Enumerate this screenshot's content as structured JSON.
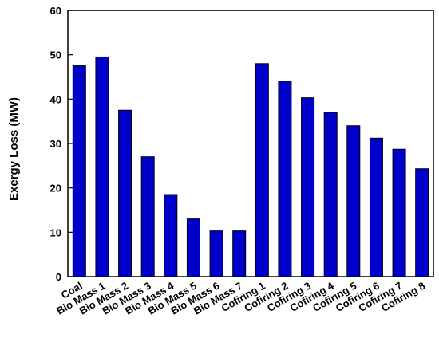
{
  "chart_data": {
    "type": "bar",
    "title": "",
    "xlabel": "",
    "ylabel": "Exergy Loss (MW)",
    "ylim": [
      0,
      60
    ],
    "yticks": [
      0,
      10,
      20,
      30,
      40,
      50,
      60
    ],
    "grid": false,
    "bar_color": "#0000cc",
    "categories": [
      "Coal",
      "Bio Mass 1",
      "Bio Mass 2",
      "Bio Mass 3",
      "Bio Mass 4",
      "Bio Mass 5",
      "Bio Mass 6",
      "Bio Mass 7",
      "Cofiring 1",
      "Cofiring 2",
      "Cofiring 3",
      "Cofiring 4",
      "Cofiring 5",
      "Cofiring 6",
      "Cofiring 7",
      "Cofiring 8"
    ],
    "values": [
      47.5,
      49.5,
      37.5,
      27.0,
      18.5,
      13.0,
      10.3,
      10.3,
      48.0,
      44.0,
      40.3,
      37.0,
      34.0,
      31.2,
      28.7,
      24.3
    ]
  }
}
